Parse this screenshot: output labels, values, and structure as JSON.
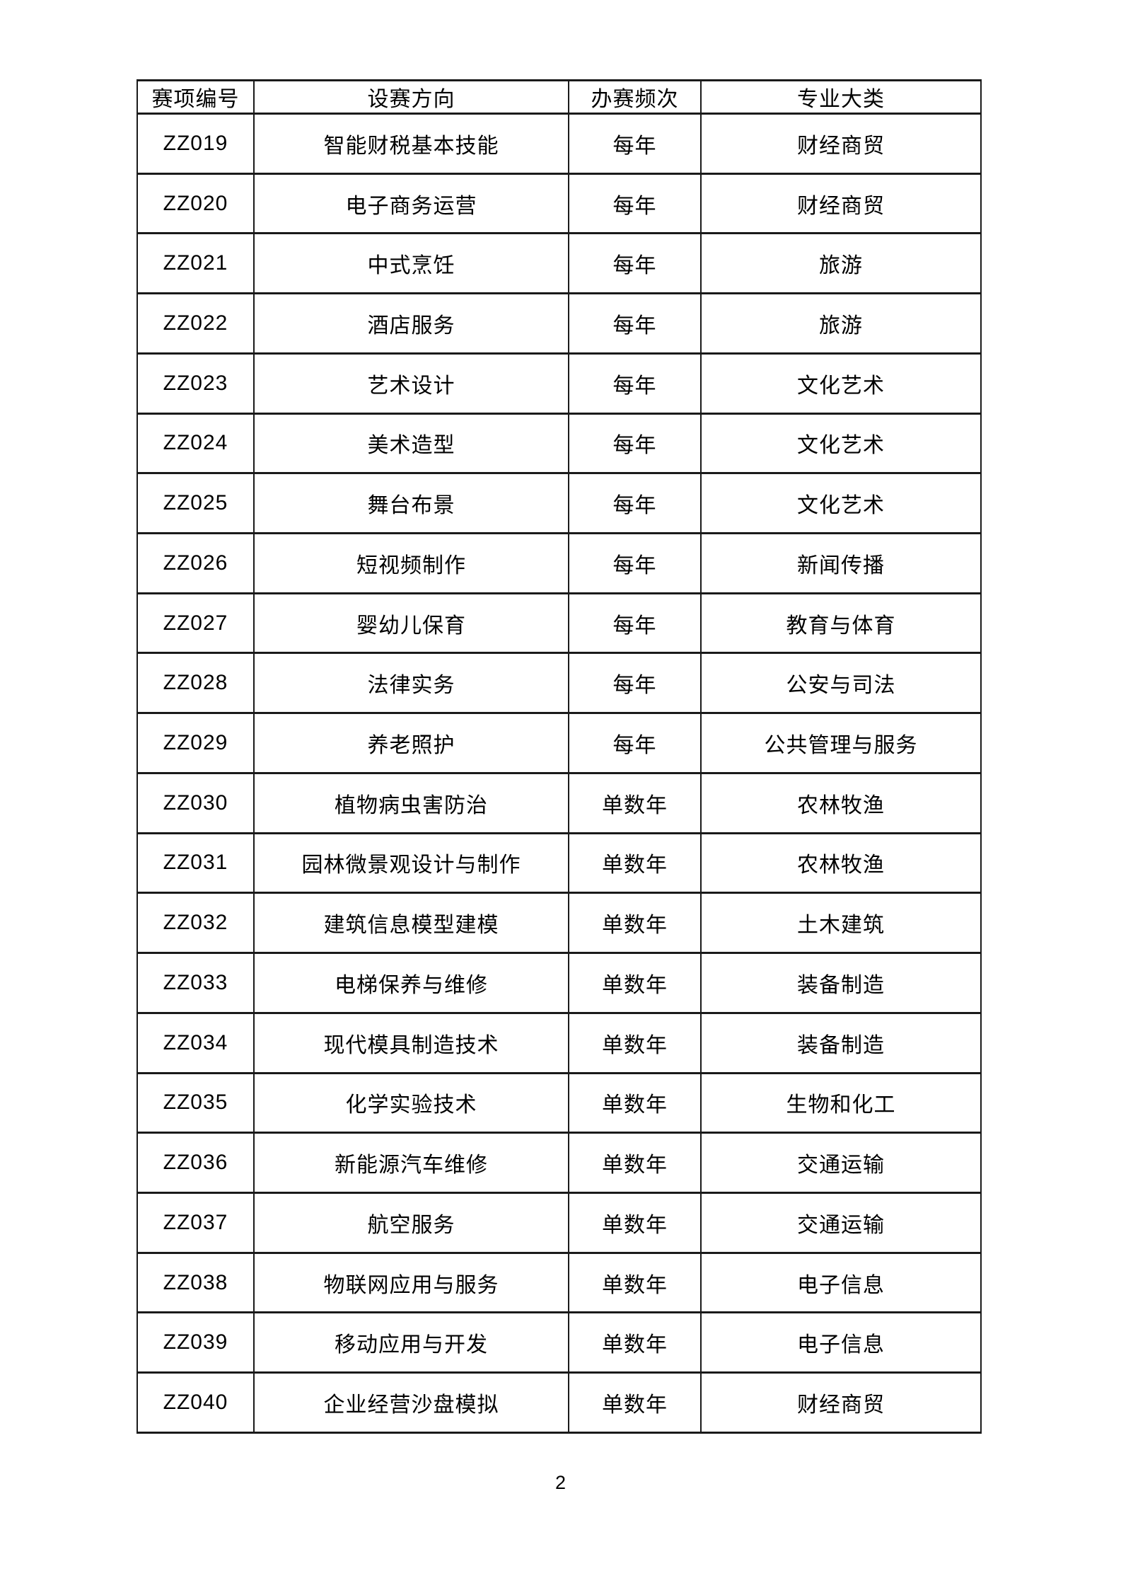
{
  "page": {
    "number": "2",
    "background": "#ffffff",
    "border_color": "#1a1a1a"
  },
  "table": {
    "headers": [
      "赛项编号",
      "设赛方向",
      "办赛频次",
      "专业大类"
    ],
    "rows": [
      {
        "code": "ZZ019",
        "direction": "智能财税基本技能",
        "frequency": "每年",
        "category": "财经商贸"
      },
      {
        "code": "ZZ020",
        "direction": "电子商务运营",
        "frequency": "每年",
        "category": "财经商贸"
      },
      {
        "code": "ZZ021",
        "direction": "中式烹饪",
        "frequency": "每年",
        "category": "旅游"
      },
      {
        "code": "ZZ022",
        "direction": "酒店服务",
        "frequency": "每年",
        "category": "旅游"
      },
      {
        "code": "ZZ023",
        "direction": "艺术设计",
        "frequency": "每年",
        "category": "文化艺术"
      },
      {
        "code": "ZZ024",
        "direction": "美术造型",
        "frequency": "每年",
        "category": "文化艺术"
      },
      {
        "code": "ZZ025",
        "direction": "舞台布景",
        "frequency": "每年",
        "category": "文化艺术"
      },
      {
        "code": "ZZ026",
        "direction": "短视频制作",
        "frequency": "每年",
        "category": "新闻传播"
      },
      {
        "code": "ZZ027",
        "direction": "婴幼儿保育",
        "frequency": "每年",
        "category": "教育与体育"
      },
      {
        "code": "ZZ028",
        "direction": "法律实务",
        "frequency": "每年",
        "category": "公安与司法"
      },
      {
        "code": "ZZ029",
        "direction": "养老照护",
        "frequency": "每年",
        "category": "公共管理与服务"
      },
      {
        "code": "ZZ030",
        "direction": "植物病虫害防治",
        "frequency": "单数年",
        "category": "农林牧渔"
      },
      {
        "code": "ZZ031",
        "direction": "园林微景观设计与制作",
        "frequency": "单数年",
        "category": "农林牧渔"
      },
      {
        "code": "ZZ032",
        "direction": "建筑信息模型建模",
        "frequency": "单数年",
        "category": "土木建筑"
      },
      {
        "code": "ZZ033",
        "direction": "电梯保养与维修",
        "frequency": "单数年",
        "category": "装备制造"
      },
      {
        "code": "ZZ034",
        "direction": "现代模具制造技术",
        "frequency": "单数年",
        "category": "装备制造"
      },
      {
        "code": "ZZ035",
        "direction": "化学实验技术",
        "frequency": "单数年",
        "category": "生物和化工"
      },
      {
        "code": "ZZ036",
        "direction": "新能源汽车维修",
        "frequency": "单数年",
        "category": "交通运输"
      },
      {
        "code": "ZZ037",
        "direction": "航空服务",
        "frequency": "单数年",
        "category": "交通运输"
      },
      {
        "code": "ZZ038",
        "direction": "物联网应用与服务",
        "frequency": "单数年",
        "category": "电子信息"
      },
      {
        "code": "ZZ039",
        "direction": "移动应用与开发",
        "frequency": "单数年",
        "category": "电子信息"
      },
      {
        "code": "ZZ040",
        "direction": "企业经营沙盘模拟",
        "frequency": "单数年",
        "category": "财经商贸"
      }
    ]
  }
}
